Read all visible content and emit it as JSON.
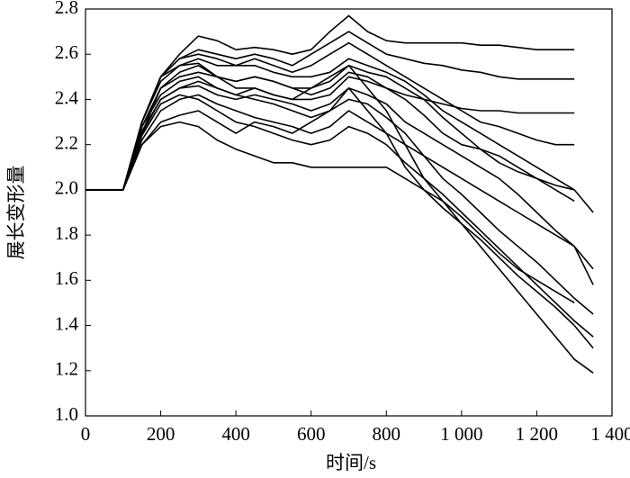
{
  "chart_data": {
    "type": "line",
    "xlabel": "时间/s",
    "ylabel": "展长变形量",
    "x": [
      0,
      50,
      100,
      150,
      200,
      250,
      300,
      350,
      400,
      450,
      500,
      550,
      600,
      650,
      700,
      750,
      800,
      850,
      900,
      950,
      1000,
      1050,
      1100,
      1150,
      1200,
      1250,
      1300,
      1350
    ],
    "series": [
      {
        "color": "#000000",
        "values": [
          2,
          2,
          2,
          2.3,
          2.5,
          2.6,
          2.68,
          2.66,
          2.62,
          2.63,
          2.62,
          2.6,
          2.62,
          2.7,
          2.77,
          2.7,
          2.66,
          2.65,
          2.65,
          2.65,
          2.65,
          2.64,
          2.64,
          2.63,
          2.62,
          2.62,
          2.62,
          null
        ]
      },
      {
        "color": "#000000",
        "values": [
          2,
          2,
          2,
          2.3,
          2.5,
          2.58,
          2.62,
          2.6,
          2.58,
          2.6,
          2.58,
          2.55,
          2.6,
          2.65,
          2.7,
          2.65,
          2.6,
          2.58,
          2.56,
          2.55,
          2.53,
          2.52,
          2.5,
          2.49,
          2.49,
          2.49,
          2.49,
          null
        ]
      },
      {
        "color": "#000000",
        "values": [
          2,
          2,
          2,
          2.25,
          2.4,
          2.45,
          2.48,
          2.45,
          2.42,
          2.45,
          2.42,
          2.4,
          2.45,
          2.5,
          2.55,
          2.45,
          2.35,
          2.2,
          2.05,
          1.95,
          1.85,
          1.75,
          1.65,
          1.55,
          1.45,
          1.35,
          1.25,
          1.19
        ]
      },
      {
        "color": "#000000",
        "values": [
          2,
          2,
          2,
          2.2,
          2.3,
          2.33,
          2.35,
          2.3,
          2.25,
          2.3,
          2.28,
          2.25,
          2.3,
          2.35,
          2.45,
          2.35,
          2.25,
          2.1,
          2.0,
          1.92,
          1.85,
          1.78,
          1.7,
          1.62,
          1.55,
          1.48,
          1.4,
          1.3
        ]
      },
      {
        "color": "#000000",
        "values": [
          2,
          2,
          2,
          2.2,
          2.28,
          2.3,
          2.28,
          2.22,
          2.18,
          2.15,
          2.12,
          2.12,
          2.1,
          2.1,
          2.1,
          2.1,
          2.1,
          2.05,
          2.0,
          1.95,
          1.88,
          1.8,
          1.72,
          1.65,
          1.6,
          1.55,
          1.5,
          null
        ]
      },
      {
        "color": "#000000",
        "values": [
          2,
          2,
          2,
          2.25,
          2.45,
          2.52,
          2.55,
          2.5,
          2.48,
          2.5,
          2.48,
          2.45,
          2.42,
          2.45,
          2.52,
          2.5,
          2.45,
          2.4,
          2.33,
          2.25,
          2.2,
          2.18,
          2.15,
          2.1,
          2.05,
          2.0,
          1.95,
          null
        ]
      },
      {
        "color": "#000000",
        "values": [
          2,
          2,
          2,
          2.3,
          2.48,
          2.55,
          2.58,
          2.55,
          2.55,
          2.58,
          2.55,
          2.52,
          2.55,
          2.6,
          2.65,
          2.6,
          2.55,
          2.5,
          2.45,
          2.4,
          2.35,
          2.3,
          2.28,
          2.25,
          2.22,
          2.2,
          2.2,
          null
        ]
      },
      {
        "color": "#000000",
        "values": [
          2,
          2,
          2,
          2.28,
          2.42,
          2.48,
          2.5,
          2.45,
          2.42,
          2.4,
          2.38,
          2.35,
          2.32,
          2.35,
          2.4,
          2.38,
          2.32,
          2.25,
          2.15,
          2.05,
          1.98,
          1.9,
          1.82,
          1.75,
          1.68,
          1.6,
          1.52,
          1.45
        ]
      },
      {
        "color": "#000000",
        "values": [
          2,
          2,
          2,
          2.22,
          2.35,
          2.4,
          2.42,
          2.38,
          2.35,
          2.32,
          2.3,
          2.28,
          2.25,
          2.28,
          2.35,
          2.3,
          2.25,
          2.2,
          2.15,
          2.1,
          2.05,
          2.0,
          1.95,
          1.9,
          1.85,
          1.8,
          1.75,
          1.65
        ]
      },
      {
        "color": "#000000",
        "values": [
          2,
          2,
          2,
          2.3,
          2.5,
          2.58,
          2.6,
          2.58,
          2.55,
          2.55,
          2.52,
          2.5,
          2.5,
          2.52,
          2.58,
          2.55,
          2.52,
          2.48,
          2.42,
          2.35,
          2.3,
          2.25,
          2.2,
          2.15,
          2.1,
          2.05,
          2.0,
          1.9
        ]
      },
      {
        "color": "#000000",
        "values": [
          2,
          2,
          2,
          2.26,
          2.4,
          2.45,
          2.46,
          2.42,
          2.4,
          2.42,
          2.4,
          2.38,
          2.35,
          2.38,
          2.45,
          2.42,
          2.38,
          2.3,
          2.25,
          2.2,
          2.15,
          2.1,
          2.05,
          1.98,
          1.9,
          1.82,
          1.75,
          1.58
        ]
      },
      {
        "color": "#000000",
        "values": [
          2,
          2,
          2,
          2.3,
          2.5,
          2.55,
          2.56,
          2.5,
          2.45,
          2.45,
          2.42,
          2.4,
          2.4,
          2.42,
          2.5,
          2.48,
          2.45,
          2.42,
          2.4,
          2.38,
          2.36,
          2.35,
          2.35,
          2.34,
          2.34,
          2.34,
          2.34,
          null
        ]
      },
      {
        "color": "#000000",
        "values": [
          2,
          2,
          2,
          2.24,
          2.38,
          2.42,
          2.4,
          2.35,
          2.3,
          2.28,
          2.25,
          2.22,
          2.2,
          2.22,
          2.28,
          2.25,
          2.2,
          2.12,
          2.05,
          1.98,
          1.9,
          1.82,
          1.74,
          1.66,
          1.58,
          1.5,
          1.42,
          1.35
        ]
      },
      {
        "color": "#000000",
        "values": [
          2,
          2,
          2,
          2.28,
          2.45,
          2.5,
          2.52,
          2.5,
          2.48,
          2.5,
          2.48,
          2.45,
          2.45,
          2.48,
          2.55,
          2.52,
          2.5,
          2.45,
          2.4,
          2.32,
          2.25,
          2.18,
          2.12,
          2.08,
          2.05,
          2.02,
          2.0,
          null
        ]
      }
    ],
    "xlim": [
      0,
      1400
    ],
    "xticks": [
      0,
      200,
      400,
      600,
      800,
      {
        "value": 1000,
        "label": "1 000"
      },
      {
        "value": 1200,
        "label": "1 200"
      },
      {
        "value": 1400,
        "label": "1 400"
      }
    ],
    "ylim": [
      1,
      2.8
    ],
    "yticks": [
      {
        "value": 1,
        "label": "1.0"
      },
      1.2,
      1.4,
      1.6,
      1.8,
      {
        "value": 2,
        "label": "2.0"
      },
      2.2,
      2.4,
      2.6,
      2.8
    ],
    "grid": false
  }
}
